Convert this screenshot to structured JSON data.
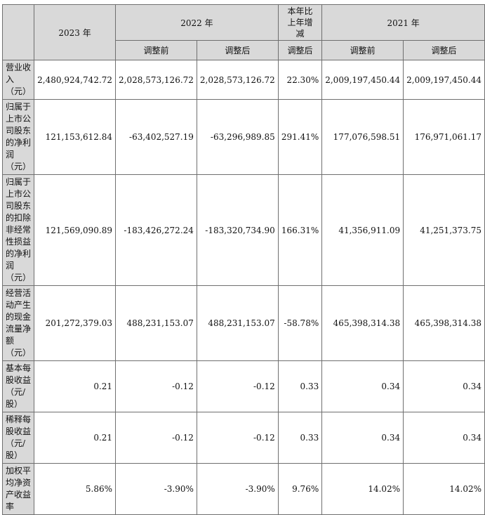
{
  "header": {
    "col_2023": "2023 年",
    "col_2022": "2022 年",
    "col_change": "本年比上年增减",
    "col_2021": "2021 年",
    "before_adj": "调整前",
    "after_adj": "调整后",
    "change_after": "调整后"
  },
  "rows": [
    {
      "label": "营业收入（元）",
      "v2023": "2,480,924,742.72",
      "v2022_before": "2,028,573,126.72",
      "v2022_after": "2,028,573,126.72",
      "change": "22.30%",
      "v2021_before": "2,009,197,450.44",
      "v2021_after": "2,009,197,450.44"
    },
    {
      "label": "归属于上市公司股东的净利润（元）",
      "v2023": "121,153,612.84",
      "v2022_before": "-63,402,527.19",
      "v2022_after": "-63,296,989.85",
      "change": "291.41%",
      "v2021_before": "177,076,598.51",
      "v2021_after": "176,971,061.17"
    },
    {
      "label": "归属于上市公司股东的扣除非经常性损益的净利润（元）",
      "v2023": "121,569,090.89",
      "v2022_before": "-183,426,272.24",
      "v2022_after": "-183,320,734.90",
      "change": "166.31%",
      "v2021_before": "41,356,911.09",
      "v2021_after": "41,251,373.75"
    },
    {
      "label": "经营活动产生的现金流量净额（元）",
      "v2023": "201,272,379.03",
      "v2022_before": "488,231,153.07",
      "v2022_after": "488,231,153.07",
      "change": "-58.78%",
      "v2021_before": "465,398,314.38",
      "v2021_after": "465,398,314.38"
    },
    {
      "label": "基本每股收益（元/股）",
      "v2023": "0.21",
      "v2022_before": "-0.12",
      "v2022_after": "-0.12",
      "change": "0.33",
      "v2021_before": "0.34",
      "v2021_after": "0.34"
    },
    {
      "label": "稀释每股收益（元/股）",
      "v2023": "0.21",
      "v2022_before": "-0.12",
      "v2022_after": "-0.12",
      "change": "0.33",
      "v2021_before": "0.34",
      "v2021_after": "0.34"
    },
    {
      "label": "加权平均净资产收益率",
      "v2023": "5.86%",
      "v2022_before": "-3.90%",
      "v2022_after": "-3.90%",
      "change": "9.76%",
      "v2021_before": "14.02%",
      "v2021_after": "14.02%"
    }
  ]
}
